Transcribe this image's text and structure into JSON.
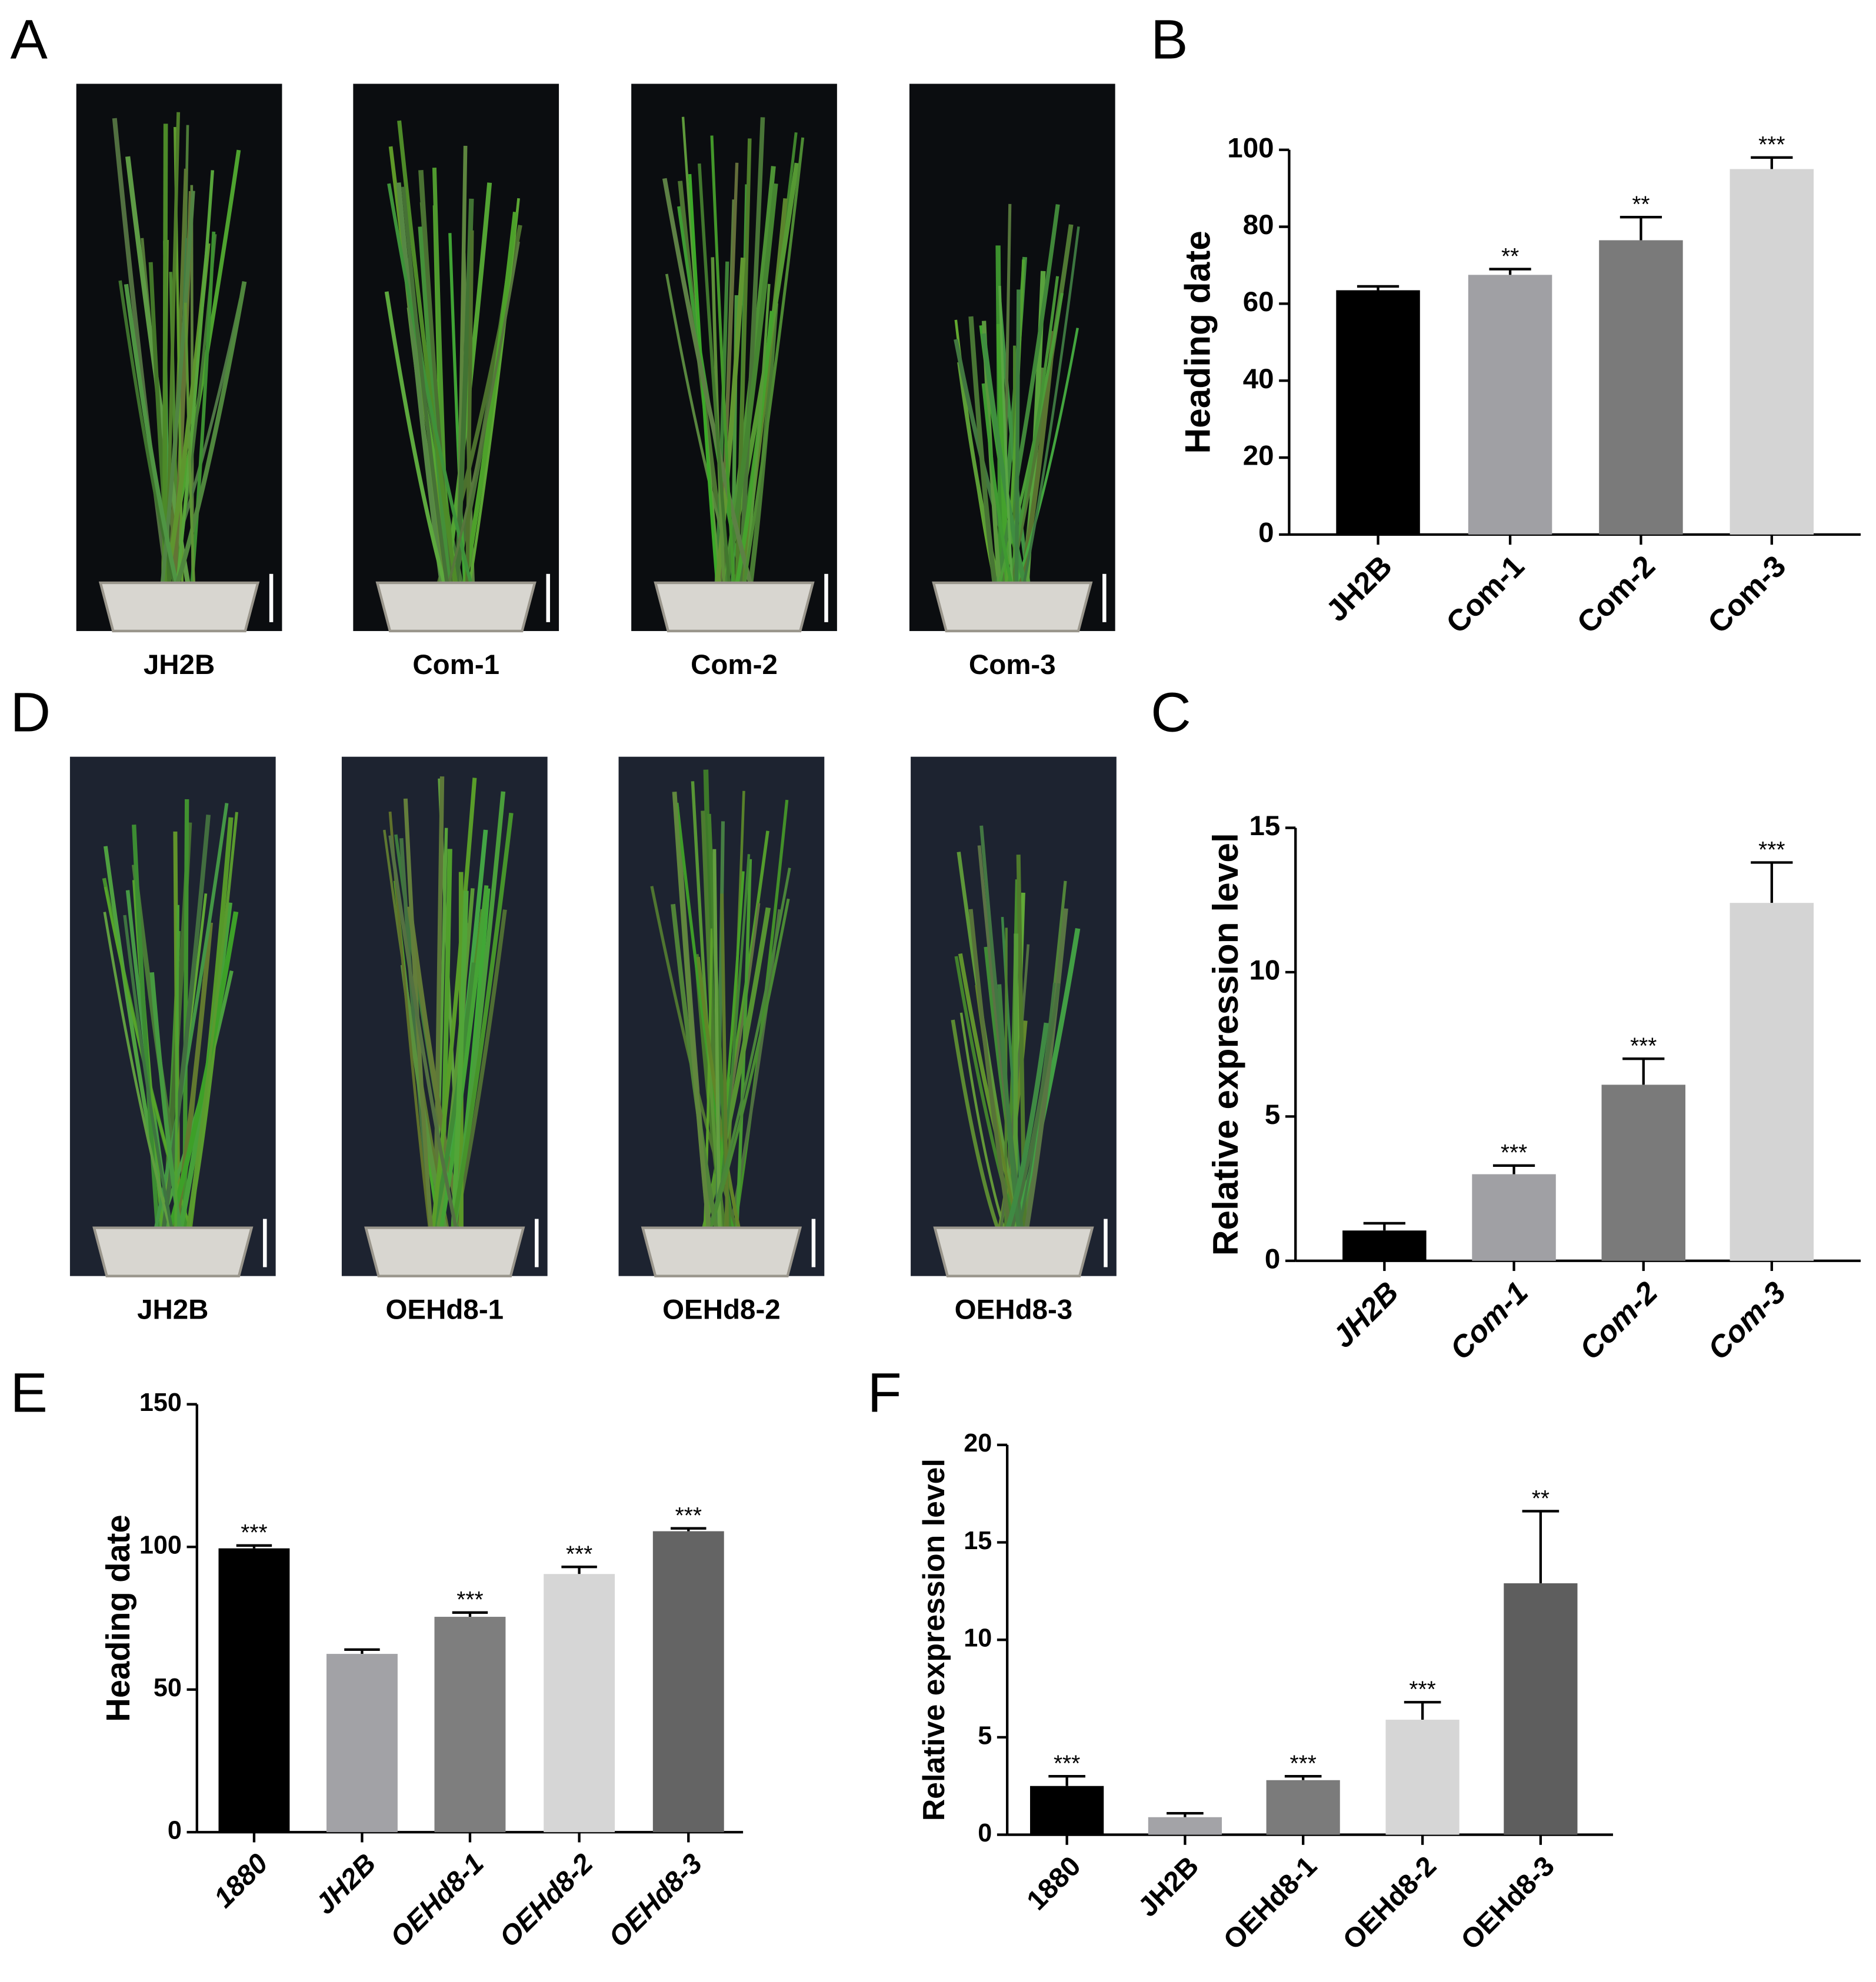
{
  "photos": [
    {
      "label": "A",
      "captions": [
        "JH2B",
        "Com-1",
        "Com-2",
        "Com-3"
      ]
    },
    {
      "label": "D",
      "captions": [
        "JH2B",
        "OEHd8-1",
        "OEHd8-2",
        "OEHd8-3"
      ]
    }
  ],
  "chart_data": [
    {
      "type": "bar",
      "label": "B",
      "y_label": "Heading date",
      "categories": [
        "JH2B",
        "Com-1",
        "Com-2",
        "Com-3"
      ],
      "values": [
        63.5,
        67.5,
        76.5,
        95
      ],
      "errors": [
        1,
        1.5,
        6,
        3
      ],
      "annotations": [
        null,
        "**",
        "**",
        "***"
      ],
      "colors": [
        "#000000",
        "#a0a0a4",
        "#7a7a7a",
        "#d4d4d4"
      ],
      "ylim": [
        0,
        100
      ],
      "yticks": [
        0,
        20,
        40,
        60,
        80,
        100
      ]
    },
    {
      "type": "bar",
      "label": "C",
      "y_label": "Relative expression level",
      "categories": [
        "JH2B",
        "Com-1",
        "Com-2",
        "Com-3"
      ],
      "values": [
        1.05,
        3.0,
        6.1,
        12.4
      ],
      "errors": [
        0.25,
        0.3,
        0.9,
        1.4
      ],
      "annotations": [
        null,
        "***",
        "***",
        "***"
      ],
      "colors": [
        "#000000",
        "#a0a0a4",
        "#7a7a7a",
        "#d4d4d4"
      ],
      "ylim": [
        0,
        15
      ],
      "yticks": [
        0,
        5,
        10,
        15
      ]
    },
    {
      "type": "bar",
      "label": "E",
      "y_label": "Heading date",
      "categories": [
        "1880",
        "JH2B",
        "OEHd8-1",
        "OEHd8-2",
        "OEHd8-3"
      ],
      "values": [
        99.5,
        62.5,
        75.5,
        90.5,
        105.5
      ],
      "errors": [
        1,
        1.5,
        1.5,
        2.5,
        1
      ],
      "annotations": [
        "***",
        null,
        "***",
        "***",
        "***"
      ],
      "colors": [
        "#000000",
        "#a2a2a6",
        "#7e7e7e",
        "#d6d6d6",
        "#646464"
      ],
      "ylim": [
        0,
        150
      ],
      "yticks": [
        0,
        50,
        100,
        150
      ]
    },
    {
      "type": "bar",
      "label": "F",
      "y_label": "Relative expression level",
      "categories": [
        "1880",
        "JH2B",
        "OEHd8-1",
        "OEHd8-2",
        "OEHd8-3"
      ],
      "values": [
        2.5,
        0.9,
        2.8,
        5.9,
        12.9
      ],
      "errors": [
        0.5,
        0.2,
        0.2,
        0.9,
        3.7
      ],
      "annotations": [
        "***",
        null,
        "***",
        "***",
        "**"
      ],
      "colors": [
        "#000000",
        "#a3a3a7",
        "#7b7b7b",
        "#d6d6d6",
        "#5e5e5e"
      ],
      "ylim": [
        0,
        20
      ],
      "yticks": [
        0,
        5,
        10,
        15,
        20
      ]
    }
  ]
}
